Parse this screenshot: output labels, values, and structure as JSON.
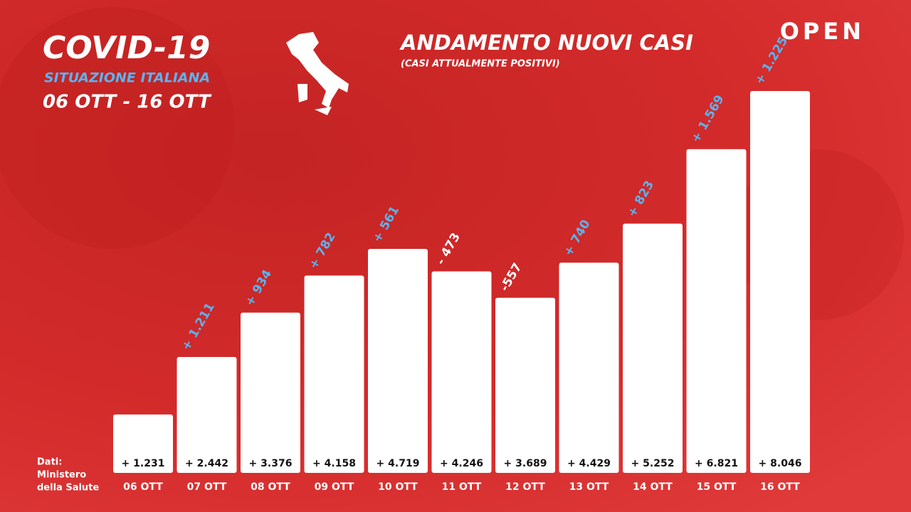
{
  "header": {
    "title": "COVID-19",
    "subtitle": "SITUAZIONE ITALIANA",
    "period": "06 OTT - 16 OTT"
  },
  "logo": "OPEN",
  "source": [
    "Dati:",
    "Ministero",
    "della Salute"
  ],
  "chart_data": {
    "type": "bar",
    "title": "ANDAMENTO NUOVI CASI",
    "subtitle": "(CASI ATTUALMENTE POSITIVI)",
    "categories": [
      "06 OTT",
      "07 OTT",
      "08 OTT",
      "09 OTT",
      "10 OTT",
      "11 OTT",
      "12 OTT",
      "13 OTT",
      "14 OTT",
      "15 OTT",
      "16 OTT"
    ],
    "values": [
      1231,
      2442,
      3376,
      4158,
      4719,
      4246,
      3689,
      4429,
      5252,
      6821,
      8046
    ],
    "value_labels": [
      "+ 1.231",
      "+ 2.442",
      "+ 3.376",
      "+ 4.158",
      "+ 4.719",
      "+ 4.246",
      "+ 3.689",
      "+ 4.429",
      "+ 5.252",
      "+ 6.821",
      "+ 8.046"
    ],
    "color": "#ffffff",
    "changes": {
      "values": [
        null,
        1211,
        934,
        782,
        561,
        -473,
        -557,
        740,
        823,
        1569,
        1225
      ],
      "value_labels": [
        null,
        "+ 1.211",
        "+ 934",
        "+ 782",
        "+ 561",
        "- 473",
        "-557",
        "+ 740",
        "+ 823",
        "+ 1.569",
        "+ 1.225"
      ],
      "positive_color": "#5ab4f0",
      "negative_color": "#ffffff"
    }
  }
}
